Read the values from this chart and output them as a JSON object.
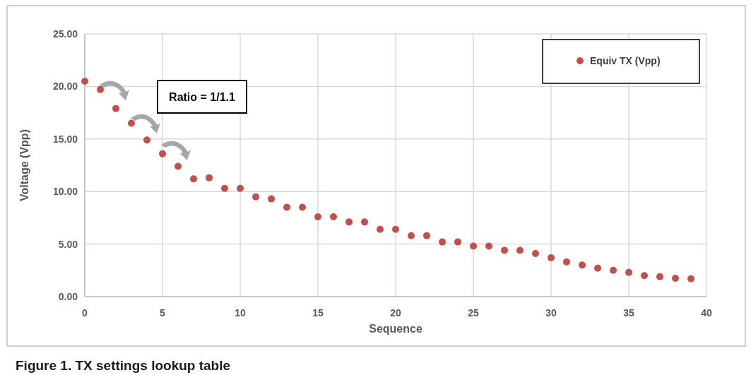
{
  "chart_data": {
    "type": "scatter",
    "xlabel": "Sequence",
    "ylabel": "Voltage (Vpp)",
    "x": [
      0,
      1,
      2,
      3,
      4,
      5,
      6,
      7,
      8,
      9,
      10,
      11,
      12,
      13,
      14,
      15,
      16,
      17,
      18,
      19,
      20,
      21,
      22,
      23,
      24,
      25,
      26,
      27,
      28,
      29,
      30,
      31,
      32,
      33,
      34,
      35,
      36,
      37,
      38,
      39
    ],
    "series": [
      {
        "name": "Equiv TX (Vpp)",
        "color": "#c0504d",
        "values": [
          20.5,
          19.7,
          17.9,
          16.5,
          14.9,
          13.6,
          12.4,
          11.2,
          11.3,
          10.3,
          10.3,
          9.5,
          9.3,
          8.5,
          8.5,
          7.6,
          7.6,
          7.1,
          7.1,
          6.4,
          6.4,
          5.8,
          5.8,
          5.2,
          5.2,
          4.8,
          4.8,
          4.4,
          4.4,
          4.1,
          3.7,
          3.3,
          3.0,
          2.7,
          2.5,
          2.3,
          2.0,
          1.9,
          1.75,
          1.7
        ]
      }
    ],
    "xlim": [
      0,
      40
    ],
    "xticks": [
      0,
      5,
      10,
      15,
      20,
      25,
      30,
      35,
      40
    ],
    "ylim": [
      0,
      25
    ],
    "yticks": [
      {
        "value": 0,
        "label": "0.00"
      },
      {
        "value": 5,
        "label": "5.00"
      },
      {
        "value": 10,
        "label": "10.00"
      },
      {
        "value": 15,
        "label": "15.00"
      },
      {
        "value": 20,
        "label": "20.00"
      },
      {
        "value": 25,
        "label": "25.00"
      }
    ],
    "grid": true,
    "legend": "top right",
    "marker": "circle",
    "annotations": [
      "Ratio = 1/1.1",
      "Figure 1.  TX settings lookup table"
    ]
  }
}
